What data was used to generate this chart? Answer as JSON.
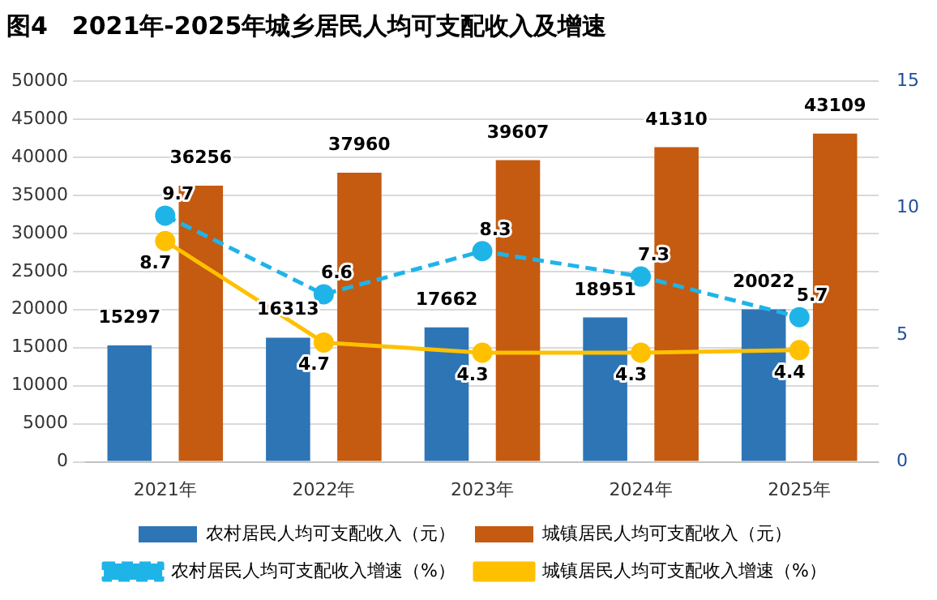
{
  "chart_data": {
    "type": "bar",
    "title": "图4　2021年-2025年城乡居民人均可支配收入及增速",
    "categories": [
      "2021年",
      "2022年",
      "2023年",
      "2024年",
      "2025年"
    ],
    "series": [
      {
        "name": "农村居民人均可支配收入（元）",
        "color": "#2e75b6",
        "values": [
          15297,
          16313,
          17662,
          18951,
          20022
        ]
      },
      {
        "name": "城镇居民人均可支配收入（元）",
        "color": "#c55a11",
        "values": [
          36256,
          37960,
          39607,
          41310,
          43109
        ]
      },
      {
        "name": "农村居民人均可支配收入增速（%）",
        "type": "line",
        "axis": "y2",
        "color": "#1fb4e8",
        "line_style": "dashed",
        "marker": "circle",
        "values": [
          9.7,
          6.6,
          8.3,
          7.3,
          5.7
        ]
      },
      {
        "name": "城镇居民人均可支配收入增速（%）",
        "type": "line",
        "axis": "y2",
        "color": "#ffc000",
        "line_style": "solid",
        "marker": "circle",
        "values": [
          8.7,
          4.7,
          4.3,
          4.3,
          4.4
        ]
      }
    ],
    "ylim": [
      0,
      50000
    ],
    "yticks": [
      0,
      5000,
      10000,
      15000,
      20000,
      25000,
      30000,
      35000,
      40000,
      45000,
      50000
    ],
    "y2lim": [
      0,
      15
    ],
    "y2ticks": [
      0,
      5,
      10,
      15
    ],
    "grid": "y",
    "legend": "bottom",
    "data_labels": true
  }
}
